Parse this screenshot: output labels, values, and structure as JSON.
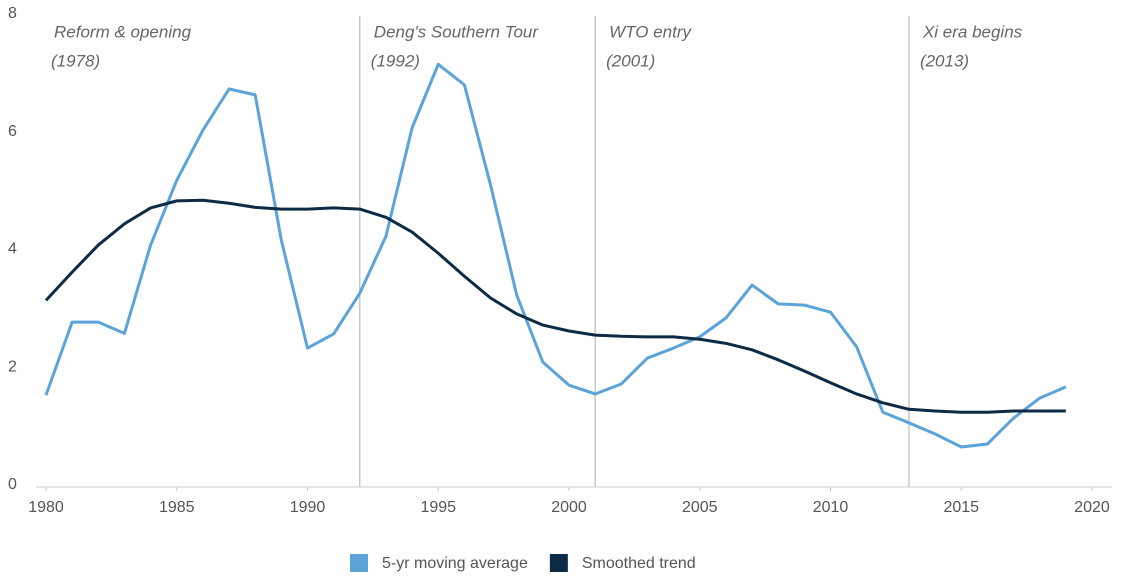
{
  "chart_data": {
    "type": "line",
    "x": [
      1980,
      1981,
      1982,
      1983,
      1984,
      1985,
      1986,
      1987,
      1988,
      1989,
      1990,
      1991,
      1992,
      1993,
      1994,
      1995,
      1996,
      1997,
      1998,
      1999,
      2000,
      2001,
      2002,
      2003,
      2004,
      2005,
      2006,
      2007,
      2008,
      2009,
      2010,
      2011,
      2012,
      2013,
      2014,
      2015,
      2016,
      2017,
      2018,
      2019
    ],
    "series": [
      {
        "name": "5-yr moving average",
        "color": "#5ba3d9",
        "values": [
          1.56,
          2.8,
          2.8,
          2.61,
          4.11,
          5.21,
          6.06,
          6.76,
          6.66,
          4.19,
          2.36,
          2.6,
          3.29,
          4.26,
          6.1,
          7.18,
          6.83,
          5.13,
          3.26,
          2.12,
          1.73,
          1.58,
          1.75,
          2.19,
          2.36,
          2.55,
          2.87,
          3.43,
          3.11,
          3.09,
          2.97,
          2.38,
          1.27,
          1.09,
          0.9,
          0.68,
          0.73,
          1.17,
          1.51,
          1.7
        ]
      },
      {
        "name": "Smoothed trend",
        "color": "#0d2b45",
        "values": [
          3.17,
          3.65,
          4.11,
          4.47,
          4.74,
          4.86,
          4.87,
          4.82,
          4.75,
          4.72,
          4.72,
          4.74,
          4.72,
          4.58,
          4.33,
          3.97,
          3.58,
          3.21,
          2.94,
          2.75,
          2.65,
          2.58,
          2.56,
          2.55,
          2.55,
          2.51,
          2.44,
          2.33,
          2.16,
          1.97,
          1.77,
          1.58,
          1.43,
          1.32,
          1.29,
          1.27,
          1.27,
          1.29,
          1.29,
          1.29
        ]
      }
    ],
    "xlim": [
      1980,
      2020
    ],
    "xticks": [
      1980,
      1985,
      1990,
      1995,
      2000,
      2005,
      2010,
      2015,
      2020
    ],
    "ylim": [
      0,
      8
    ],
    "yticks": [
      0,
      2,
      4,
      6,
      8
    ],
    "annotations": [
      {
        "text": "Reform & opening",
        "year": "(1978)"
      },
      {
        "text": "Deng's Southern Tour",
        "year": "(1992)",
        "x": 1992
      },
      {
        "text": "WTO entry",
        "year": "(2001)",
        "x": 2001
      },
      {
        "text": "Xi era begins",
        "year": "(2013)",
        "x": 2013
      }
    ]
  }
}
